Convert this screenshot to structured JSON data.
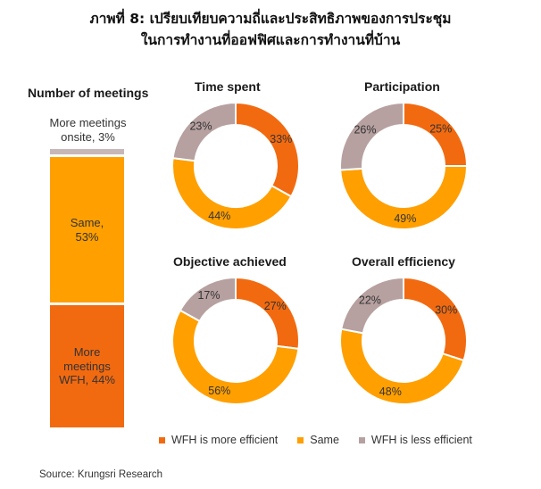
{
  "title_line1": "ภาพที่ 8: เปรียบเทียบความถี่และประสิทธิภาพของการประชุม",
  "title_line2": "ในการทำงานที่ออฟฟิศและการทำงานที่บ้าน",
  "source": "Source: Krungsri Research",
  "colors": {
    "wfh_more_efficient": "#f26a10",
    "same": "#ff9f00",
    "wfh_less_efficient": "#b7a0a0"
  },
  "legend": [
    {
      "label": "WFH is more efficient",
      "color": "#f26a10"
    },
    {
      "label": "Same",
      "color": "#ff9f00"
    },
    {
      "label": "WFH is less efficient",
      "color": "#b7a0a0"
    }
  ],
  "chart_data": [
    {
      "type": "bar",
      "stacked": true,
      "title": "Number of meetings",
      "segments": [
        {
          "label_lines": [
            "More meetings",
            "onsite, 3%"
          ],
          "value": 3,
          "color": "#c8b7b7"
        },
        {
          "label_lines": [
            "Same,",
            "53%"
          ],
          "value": 53,
          "color": "#ff9f00"
        },
        {
          "label_lines": [
            "More",
            "meetings",
            "WFH, 44%"
          ],
          "value": 44,
          "color": "#f26a10"
        }
      ]
    },
    {
      "type": "pie",
      "donut": true,
      "title": "Time spent",
      "slices": [
        {
          "category": "WFH is more efficient",
          "value": 33,
          "label": "33%"
        },
        {
          "category": "Same",
          "value": 44,
          "label": "44%"
        },
        {
          "category": "WFH is less efficient",
          "value": 23,
          "label": "23%"
        }
      ]
    },
    {
      "type": "pie",
      "donut": true,
      "title": "Participation",
      "slices": [
        {
          "category": "WFH is more efficient",
          "value": 25,
          "label": "25%"
        },
        {
          "category": "Same",
          "value": 49,
          "label": "49%"
        },
        {
          "category": "WFH is less efficient",
          "value": 26,
          "label": "26%"
        }
      ]
    },
    {
      "type": "pie",
      "donut": true,
      "title": "Objective achieved",
      "slices": [
        {
          "category": "WFH is more efficient",
          "value": 27,
          "label": "27%"
        },
        {
          "category": "Same",
          "value": 56,
          "label": "56%"
        },
        {
          "category": "WFH is less efficient",
          "value": 17,
          "label": "17%"
        }
      ]
    },
    {
      "type": "pie",
      "donut": true,
      "title": "Overall efficiency",
      "slices": [
        {
          "category": "WFH is more efficient",
          "value": 30,
          "label": "30%"
        },
        {
          "category": "Same",
          "value": 48,
          "label": "48%"
        },
        {
          "category": "WFH is less efficient",
          "value": 22,
          "label": "22%"
        }
      ]
    }
  ]
}
